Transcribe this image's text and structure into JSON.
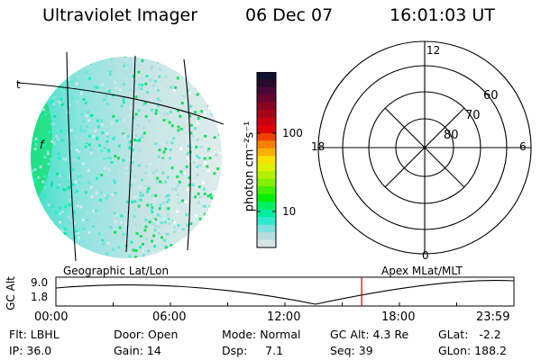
{
  "header": {
    "title": "Ultraviolet Imager",
    "date": "06 Dec 07",
    "time": "16:01:03 UT"
  },
  "image_panel": {
    "marker_left": "t",
    "marker_inner": "f",
    "caption": "Geographic Lat/Lon"
  },
  "colorbar": {
    "unit_label": "photon cm⁻²s⁻¹",
    "ticks": [
      "100",
      "10"
    ],
    "colors": [
      "#101030",
      "#2a0a2a",
      "#4a0838",
      "#6a0530",
      "#8a0420",
      "#a80418",
      "#c80010",
      "#e00008",
      "#f04000",
      "#f88000",
      "#f8b000",
      "#f8e000",
      "#e0f000",
      "#b0f000",
      "#80f000",
      "#40f000",
      "#00f000",
      "#00f060",
      "#00f0a0",
      "#30e8d0",
      "#80e0e0",
      "#b8dcdc",
      "#d8e4e4"
    ]
  },
  "polar": {
    "label_12": "12",
    "label_18": "18",
    "label_6": "6",
    "label_0": "0",
    "label_60": "60",
    "label_70": "70",
    "label_80": "80",
    "caption": "Apex MLat/MLT"
  },
  "altitude": {
    "axis_label": "GC Alt",
    "tick_top": "9.0",
    "tick_bottom": "1.8",
    "time_ticks": [
      "00:00",
      "06:00",
      "12:00",
      "18:00",
      "23:59"
    ],
    "current_time_hours": 16.02
  },
  "info": {
    "flt": "Flt: LBHL",
    "ip": "IP: 36.0",
    "door": "Door: Open",
    "gain": "Gain: 14",
    "mode": "Mode: Normal",
    "dsp": "Dsp:     7.1",
    "gc_alt": "GC Alt: 4.3 Re",
    "seq": "Seq: 39",
    "glat": "GLat:   -2.2",
    "glon": "GLon: 188.2"
  }
}
